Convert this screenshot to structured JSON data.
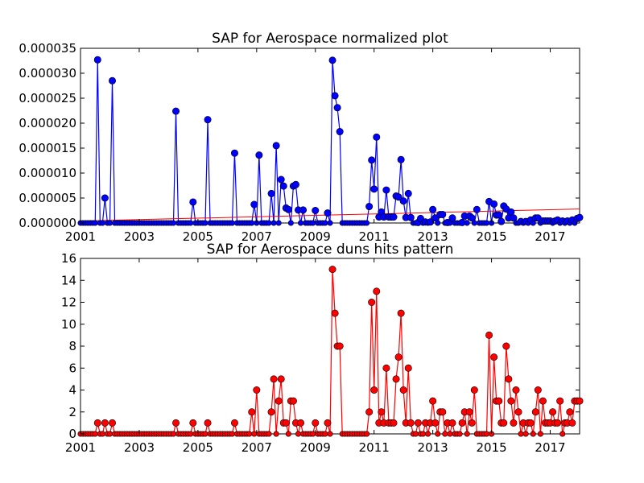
{
  "colors": {
    "top_series": "#0000ff",
    "top_trend": "#ff0000",
    "bottom_series": "#ff0000",
    "marker_edge": "#000000"
  },
  "chart_data": [
    {
      "type": "line",
      "title": "SAP for Aerospace normalized plot",
      "xlabel": "",
      "ylabel": "",
      "xlim": [
        2001.0,
        2018.0
      ],
      "ylim": [
        0,
        3.5e-05
      ],
      "xticks": [
        2001,
        2003,
        2005,
        2007,
        2009,
        2011,
        2013,
        2015,
        2017
      ],
      "xtick_labels": [
        "2001",
        "2003",
        "2005",
        "2007",
        "2009",
        "2011",
        "2013",
        "2015",
        "2017"
      ],
      "yticks": [
        0,
        5e-06,
        1e-05,
        1.5e-05,
        2e-05,
        2.5e-05,
        3e-05,
        3.5e-05
      ],
      "ytick_labels": [
        "0.000000",
        "0.000005",
        "0.000010",
        "0.000015",
        "0.000020",
        "0.000025",
        "0.000030",
        "0.000035"
      ],
      "grid": false,
      "legend": "none",
      "marker": "circle",
      "series": [
        {
          "values": [
            [
              2001.583,
              3.27e-05
            ],
            [
              2001.833,
              5e-06
            ],
            [
              2002.083,
              2.85e-05
            ],
            [
              2004.25,
              2.24e-05
            ],
            [
              2004.833,
              4.2e-06
            ],
            [
              2005.333,
              2.07e-05
            ],
            [
              2006.25,
              1.4e-05
            ],
            [
              2006.917,
              3.7e-06
            ],
            [
              2007.083,
              1.36e-05
            ],
            [
              2007.5,
              5.9e-06
            ],
            [
              2007.667,
              1.55e-05
            ],
            [
              2007.833,
              8.7e-06
            ],
            [
              2007.917,
              7.4e-06
            ],
            [
              2008.0,
              3e-06
            ],
            [
              2008.083,
              2.7e-06
            ],
            [
              2008.25,
              7.4e-06
            ],
            [
              2008.333,
              7.7e-06
            ],
            [
              2008.417,
              2.6e-06
            ],
            [
              2008.583,
              2.6e-06
            ],
            [
              2009.0,
              2.5e-06
            ],
            [
              2009.417,
              2e-06
            ],
            [
              2009.583,
              3.26e-05
            ],
            [
              2009.667,
              2.55e-05
            ],
            [
              2009.75,
              2.31e-05
            ],
            [
              2009.833,
              1.83e-05
            ],
            [
              2010.833,
              3.3e-06
            ],
            [
              2010.917,
              1.26e-05
            ],
            [
              2011.0,
              6.8e-06
            ],
            [
              2011.083,
              1.72e-05
            ],
            [
              2011.167,
              1.2e-06
            ],
            [
              2011.25,
              2.2e-06
            ],
            [
              2011.333,
              1.2e-06
            ],
            [
              2011.417,
              6.6e-06
            ],
            [
              2011.5,
              1.2e-06
            ],
            [
              2011.583,
              1.2e-06
            ],
            [
              2011.667,
              1.2e-06
            ],
            [
              2011.75,
              5.4e-06
            ],
            [
              2011.833,
              5.2e-06
            ],
            [
              2011.917,
              1.27e-05
            ],
            [
              2012.0,
              4.4e-06
            ],
            [
              2012.083,
              1.1e-06
            ],
            [
              2012.167,
              5.9e-06
            ],
            [
              2012.25,
              1.1e-06
            ],
            [
              2012.5,
              1e-07
            ],
            [
              2012.583,
              9e-07
            ],
            [
              2012.75,
              2e-07
            ],
            [
              2012.917,
              2e-07
            ],
            [
              2013.0,
              2.7e-06
            ],
            [
              2013.083,
              1e-06
            ],
            [
              2013.25,
              1.7e-06
            ],
            [
              2013.333,
              1.7e-06
            ],
            [
              2013.5,
              1e-07
            ],
            [
              2013.667,
              1e-06
            ],
            [
              2014.0,
              1e-07
            ],
            [
              2014.083,
              1.4e-06
            ],
            [
              2014.25,
              1.4e-06
            ],
            [
              2014.333,
              1e-06
            ],
            [
              2014.5,
              2.7e-06
            ],
            [
              2014.917,
              4.3e-06
            ],
            [
              2015.083,
              3.8e-06
            ],
            [
              2015.167,
              1.6e-06
            ],
            [
              2015.25,
              1.6e-06
            ],
            [
              2015.333,
              3e-07
            ],
            [
              2015.417,
              3.4e-06
            ],
            [
              2015.5,
              2.8e-06
            ],
            [
              2015.583,
              1e-06
            ],
            [
              2015.667,
              2.2e-06
            ],
            [
              2015.75,
              1e-06
            ],
            [
              2016.0,
              3e-07
            ],
            [
              2016.167,
              3e-07
            ],
            [
              2016.333,
              6e-07
            ],
            [
              2016.5,
              1e-06
            ],
            [
              2016.583,
              1e-06
            ],
            [
              2016.75,
              4e-07
            ],
            [
              2016.833,
              4e-07
            ],
            [
              2016.917,
              4e-07
            ],
            [
              2017.0,
              4e-07
            ],
            [
              2017.167,
              4e-07
            ],
            [
              2017.25,
              6e-07
            ],
            [
              2017.417,
              4e-07
            ],
            [
              2017.583,
              4e-07
            ],
            [
              2017.75,
              6e-07
            ],
            [
              2017.917,
              9e-07
            ],
            [
              2018.0,
              1.1e-06
            ]
          ]
        }
      ],
      "trend_line": {
        "x": [
          2001.0,
          2018.0
        ],
        "y": [
          4e-07,
          2.8e-06
        ]
      }
    },
    {
      "type": "line",
      "title": "SAP for Aerospace duns hits pattern",
      "xlabel": "",
      "ylabel": "",
      "xlim": [
        2001.0,
        2018.0
      ],
      "ylim": [
        0,
        16
      ],
      "xticks": [
        2001,
        2003,
        2005,
        2007,
        2009,
        2011,
        2013,
        2015,
        2017
      ],
      "xtick_labels": [
        "2001",
        "2003",
        "2005",
        "2007",
        "2009",
        "2011",
        "2013",
        "2015",
        "2017"
      ],
      "yticks": [
        0,
        2,
        4,
        6,
        8,
        10,
        12,
        14,
        16
      ],
      "ytick_labels": [
        "0",
        "2",
        "4",
        "6",
        "8",
        "10",
        "12",
        "14",
        "16"
      ],
      "grid": false,
      "legend": "none",
      "marker": "circle",
      "series": [
        {
          "values": [
            [
              2001.583,
              1
            ],
            [
              2001.833,
              1
            ],
            [
              2002.083,
              1
            ],
            [
              2004.25,
              1
            ],
            [
              2004.833,
              1
            ],
            [
              2005.333,
              1
            ],
            [
              2006.25,
              1
            ],
            [
              2006.833,
              2
            ],
            [
              2007.0,
              4
            ],
            [
              2007.5,
              2
            ],
            [
              2007.583,
              5
            ],
            [
              2007.75,
              3
            ],
            [
              2007.833,
              5
            ],
            [
              2007.917,
              1
            ],
            [
              2008.0,
              1
            ],
            [
              2008.167,
              3
            ],
            [
              2008.25,
              3
            ],
            [
              2008.333,
              1
            ],
            [
              2008.5,
              1
            ],
            [
              2009.0,
              1
            ],
            [
              2009.417,
              1
            ],
            [
              2009.583,
              15
            ],
            [
              2009.667,
              11
            ],
            [
              2009.75,
              8
            ],
            [
              2009.833,
              8
            ],
            [
              2010.833,
              2
            ],
            [
              2010.917,
              12
            ],
            [
              2011.0,
              4
            ],
            [
              2011.083,
              13
            ],
            [
              2011.167,
              1
            ],
            [
              2011.25,
              2
            ],
            [
              2011.333,
              1
            ],
            [
              2011.417,
              6
            ],
            [
              2011.5,
              1
            ],
            [
              2011.583,
              1
            ],
            [
              2011.667,
              1
            ],
            [
              2011.75,
              5
            ],
            [
              2011.833,
              7
            ],
            [
              2011.917,
              11
            ],
            [
              2012.0,
              4
            ],
            [
              2012.083,
              1
            ],
            [
              2012.167,
              6
            ],
            [
              2012.25,
              1
            ],
            [
              2012.5,
              1
            ],
            [
              2012.75,
              1
            ],
            [
              2012.917,
              1
            ],
            [
              2013.0,
              3
            ],
            [
              2013.083,
              1
            ],
            [
              2013.25,
              2
            ],
            [
              2013.333,
              2
            ],
            [
              2013.5,
              1
            ],
            [
              2013.667,
              1
            ],
            [
              2014.0,
              1
            ],
            [
              2014.083,
              2
            ],
            [
              2014.25,
              2
            ],
            [
              2014.333,
              1
            ],
            [
              2014.417,
              4
            ],
            [
              2014.917,
              9
            ],
            [
              2015.083,
              7
            ],
            [
              2015.167,
              3
            ],
            [
              2015.25,
              3
            ],
            [
              2015.333,
              1
            ],
            [
              2015.417,
              1
            ],
            [
              2015.5,
              8
            ],
            [
              2015.583,
              5
            ],
            [
              2015.667,
              3
            ],
            [
              2015.75,
              1
            ],
            [
              2015.833,
              4
            ],
            [
              2015.917,
              2
            ],
            [
              2016.083,
              1
            ],
            [
              2016.25,
              1
            ],
            [
              2016.333,
              1
            ],
            [
              2016.5,
              2
            ],
            [
              2016.583,
              4
            ],
            [
              2016.75,
              3
            ],
            [
              2016.833,
              1
            ],
            [
              2016.917,
              1
            ],
            [
              2017.0,
              1
            ],
            [
              2017.083,
              2
            ],
            [
              2017.167,
              1
            ],
            [
              2017.25,
              1
            ],
            [
              2017.333,
              3
            ],
            [
              2017.5,
              1
            ],
            [
              2017.583,
              1
            ],
            [
              2017.667,
              2
            ],
            [
              2017.75,
              1
            ],
            [
              2017.833,
              3
            ],
            [
              2017.917,
              3
            ],
            [
              2018.0,
              3
            ]
          ]
        }
      ]
    }
  ]
}
